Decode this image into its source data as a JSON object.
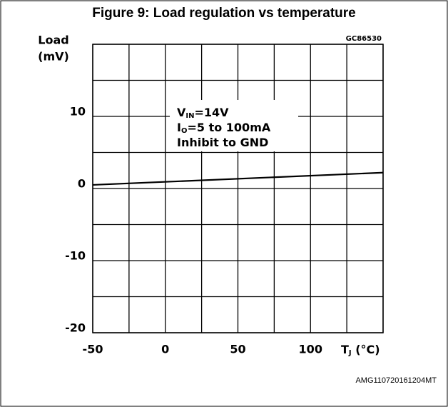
{
  "chart_data": {
    "type": "line",
    "title": "Figure 9: Load regulation vs temperature",
    "code": "GC86530",
    "footer": "AMG110720161204MT",
    "y_label": [
      "Load",
      "(mV)"
    ],
    "x_label": {
      "text": "T",
      "sub": "J",
      "rest": " (°C)"
    },
    "annotations": [
      {
        "text": "V",
        "sub": "IN",
        "rest": "=14V"
      },
      {
        "text": "I",
        "sub": "O",
        "rest": "=5 to 100mA"
      },
      {
        "text": "Inhibit to GND"
      }
    ],
    "x": [
      -50,
      150
    ],
    "series": [
      {
        "color": "#000000",
        "values": [
          0.5,
          2.2
        ]
      }
    ],
    "xlim": [
      -50,
      150
    ],
    "ylim": [
      -20,
      20
    ],
    "xticks": [
      -50,
      0,
      50,
      100
    ],
    "yticks": [
      -20,
      -10,
      0,
      10
    ],
    "xgrid": [
      -50,
      -25,
      0,
      25,
      50,
      75,
      100,
      125,
      150
    ],
    "ygrid": [
      -20,
      -15,
      -10,
      -5,
      0,
      5,
      10,
      15,
      20
    ]
  }
}
